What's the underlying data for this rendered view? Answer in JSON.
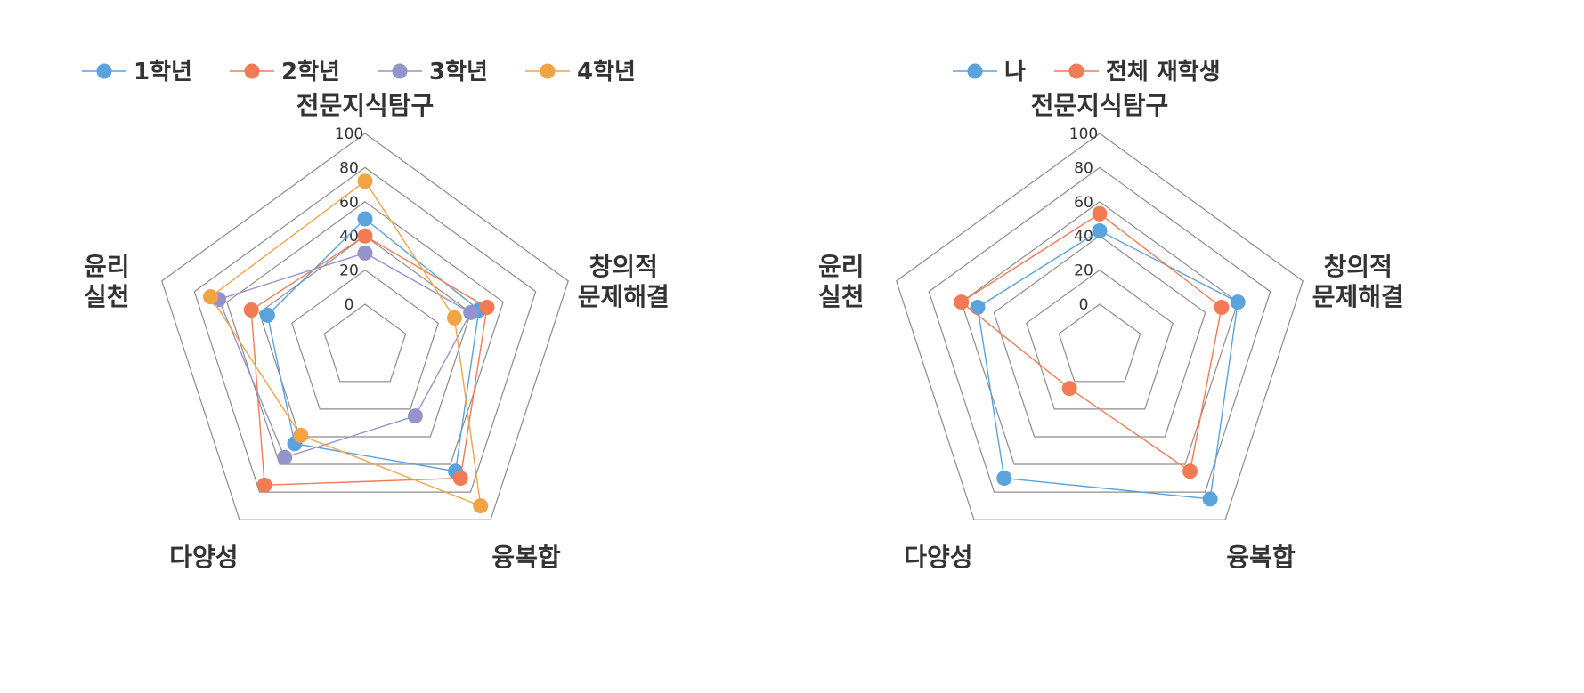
{
  "chart_data": [
    {
      "type": "radar",
      "title": "",
      "axes": [
        "전문지식탐구",
        "창의적\n문제해결",
        "융복합",
        "다양성",
        "윤리\n실천"
      ],
      "ticks": [
        "0",
        "20",
        "40",
        "60",
        "80",
        "100"
      ],
      "rlim": [
        0,
        100
      ],
      "grid": true,
      "legend_position": "top",
      "series": [
        {
          "name": "1학년",
          "color": "#5BA3DC",
          "values": [
            50,
            45,
            65,
            45,
            35
          ]
        },
        {
          "name": "2학년",
          "color": "#F07B54",
          "values": [
            40,
            50,
            70,
            75,
            45
          ]
        },
        {
          "name": "3학년",
          "color": "#9494CC",
          "values": [
            30,
            40,
            25,
            55,
            65
          ]
        },
        {
          "name": "4학년",
          "color": "#F2A444",
          "values": [
            72,
            30,
            90,
            39,
            70
          ]
        }
      ]
    },
    {
      "type": "radar",
      "title": "",
      "axes": [
        "전문지식탐구",
        "창의적\n문제해결",
        "융복합",
        "다양성",
        "윤리\n실천"
      ],
      "ticks": [
        "0",
        "20",
        "40",
        "60",
        "80",
        "100"
      ],
      "rlim": [
        0,
        100
      ],
      "grid": true,
      "legend_position": "top",
      "series": [
        {
          "name": "나",
          "color": "#5BA3DC",
          "values": [
            43,
            60,
            85,
            70,
            50
          ]
        },
        {
          "name": "전체 재학생",
          "color": "#F07B54",
          "values": [
            53,
            50,
            65,
            5,
            60
          ]
        }
      ]
    }
  ]
}
